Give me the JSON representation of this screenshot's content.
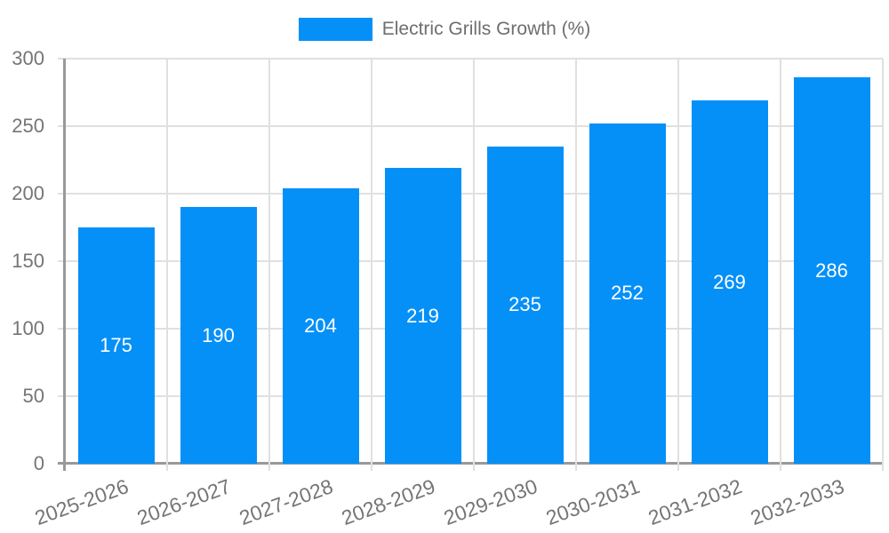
{
  "chart_data": {
    "type": "bar",
    "title": "",
    "legend_label": "Electric Grills Growth (%)",
    "legend_position": "top-center",
    "categories": [
      "2025-2026",
      "2026-2027",
      "2027-2028",
      "2028-2029",
      "2029-2030",
      "2030-2031",
      "2031-2032",
      "2032-2033"
    ],
    "values": [
      175,
      190,
      204,
      219,
      235,
      252,
      269,
      286
    ],
    "xlabel": "",
    "ylabel": "",
    "ylim": [
      0,
      300
    ],
    "yticks": [
      0,
      50,
      100,
      150,
      200,
      250,
      300
    ],
    "grid": true,
    "x_tick_rotation_deg": -20,
    "colors": {
      "bar": "#0590f8",
      "bar_label": "#ffffff",
      "axis_text": "#757575",
      "legend_text": "#6e6e6e",
      "grid_line": "#e0e0e0",
      "axis_line": "#999999",
      "background": "#ffffff"
    }
  }
}
